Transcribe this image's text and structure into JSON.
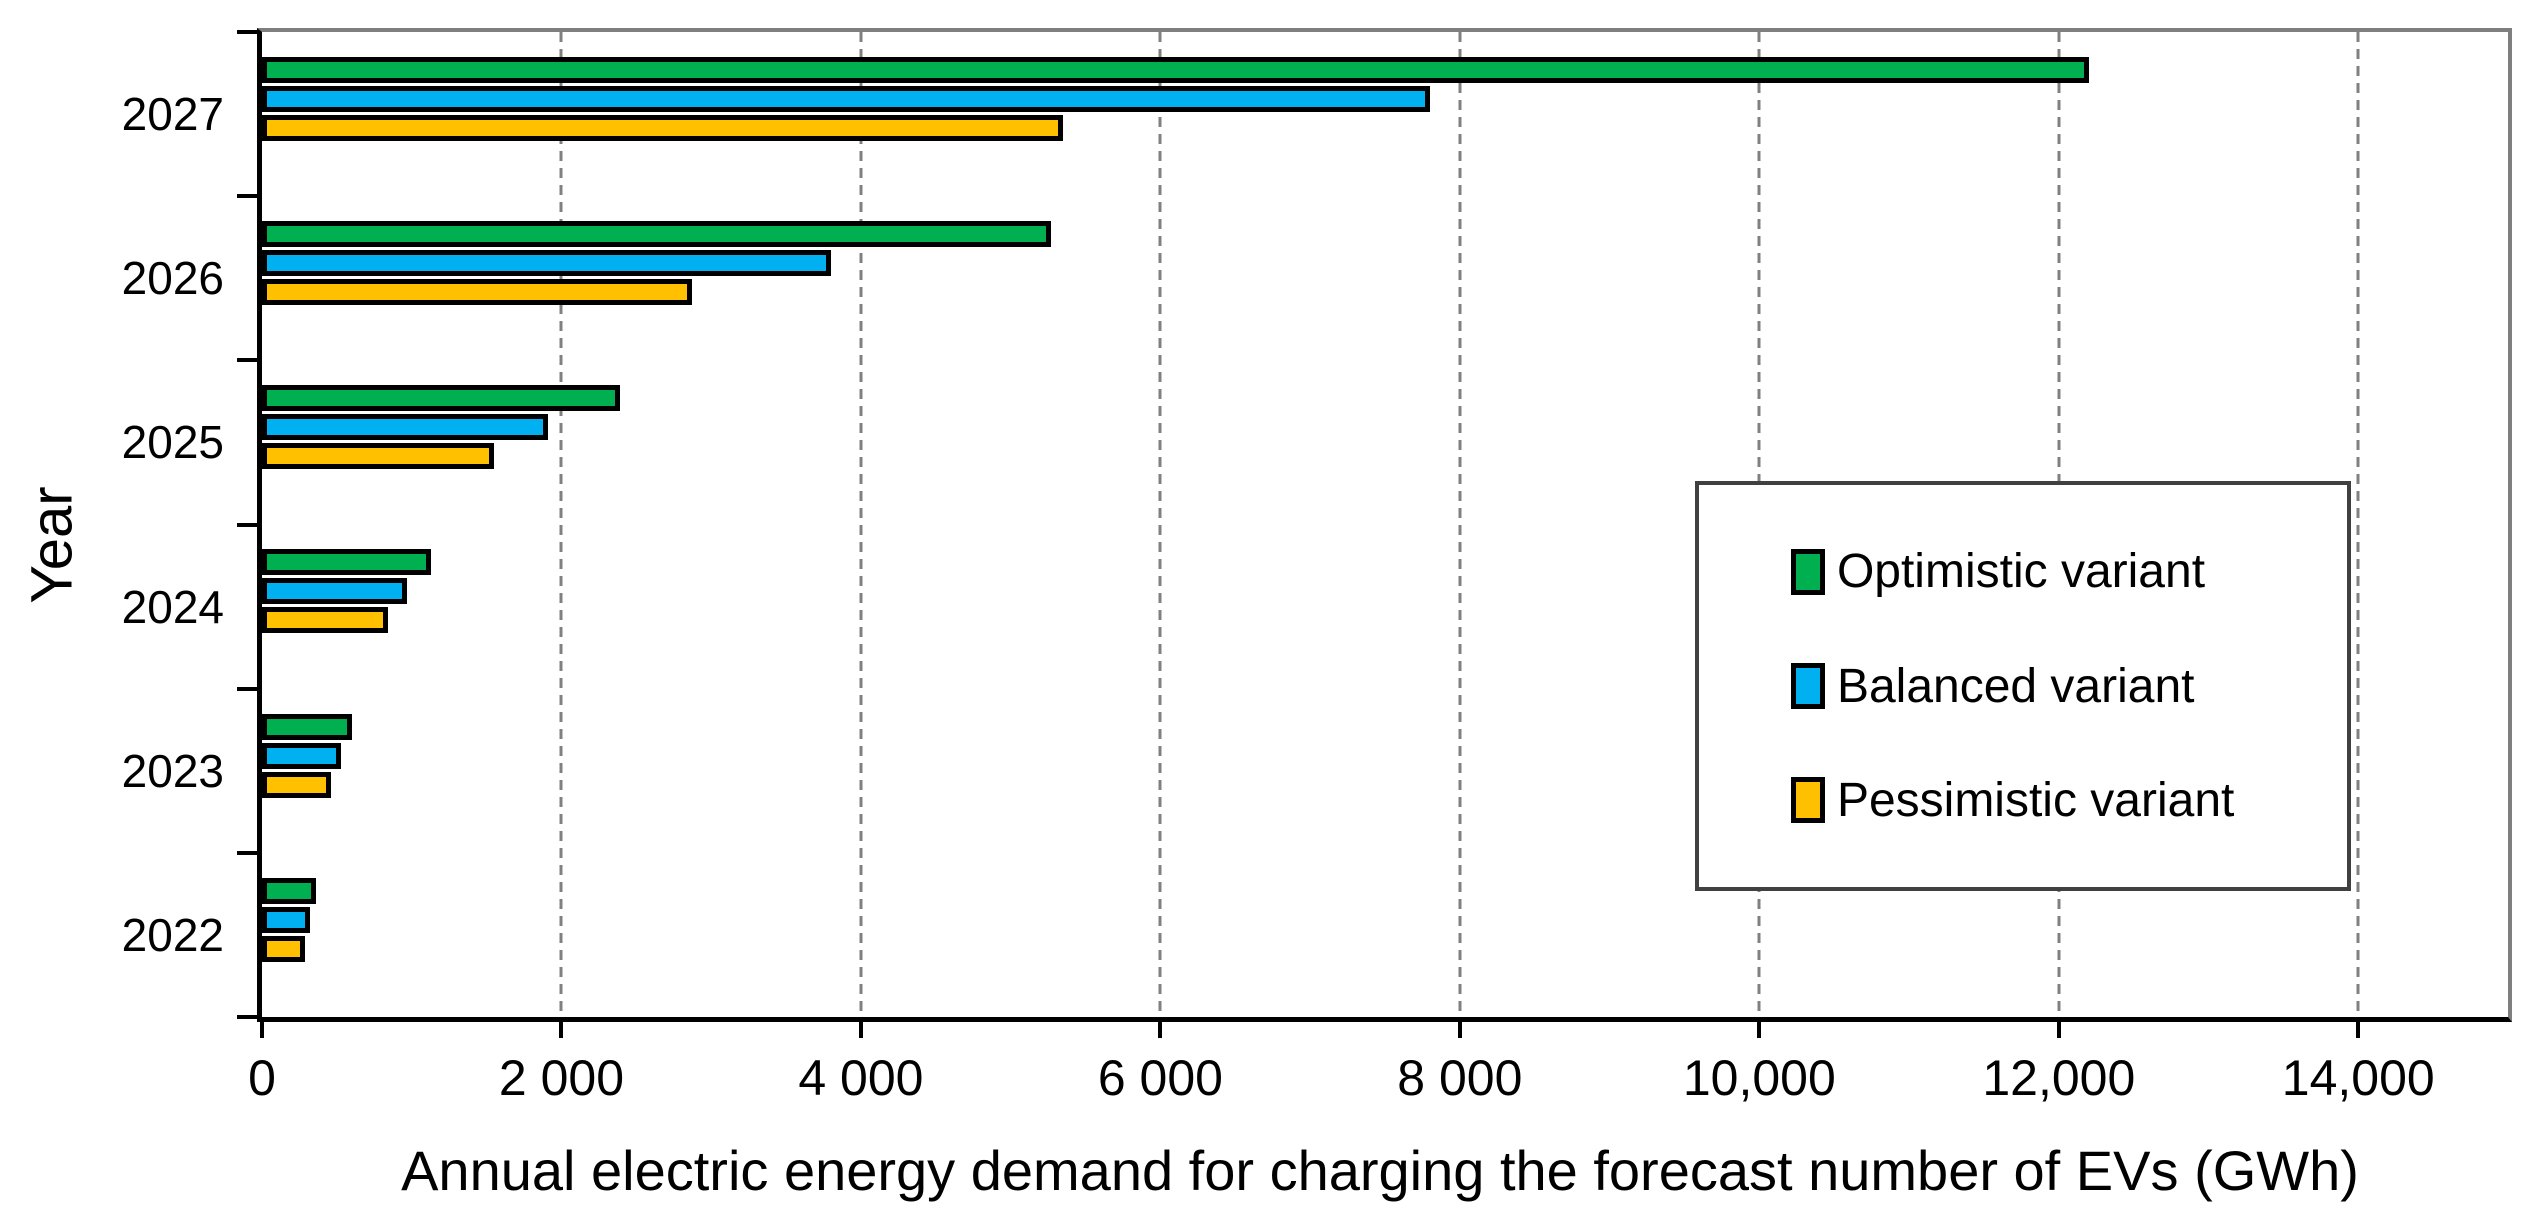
{
  "chart_data": {
    "type": "bar",
    "orientation": "horizontal",
    "xlabel": "Annual electric energy demand for charging the forecast number of EVs (GWh)",
    "ylabel": "Year",
    "categories": [
      "2027",
      "2026",
      "2025",
      "2024",
      "2023",
      "2022"
    ],
    "series": [
      {
        "name": "Optimistic variant",
        "color": "#00B050",
        "values": [
          12200,
          5270,
          2390,
          1130,
          600,
          360
        ]
      },
      {
        "name": "Balanced variant",
        "color": "#00B0F0",
        "values": [
          7800,
          3800,
          1910,
          970,
          530,
          320
        ]
      },
      {
        "name": "Pessimistic variant",
        "color": "#FFC000",
        "values": [
          5350,
          2870,
          1550,
          840,
          460,
          290
        ]
      }
    ],
    "xlim": [
      0,
      15000
    ],
    "x_ticks": [
      {
        "value": 0,
        "label": "0"
      },
      {
        "value": 2000,
        "label": "2 000"
      },
      {
        "value": 4000,
        "label": "4 000"
      },
      {
        "value": 6000,
        "label": "6 000"
      },
      {
        "value": 8000,
        "label": "8 000"
      },
      {
        "value": 10000,
        "label": "10,000"
      },
      {
        "value": 12000,
        "label": "12,000"
      },
      {
        "value": 14000,
        "label": "14,000"
      }
    ],
    "grid": "vertical-dashed-at-x-ticks",
    "legend_position": "inside-middle-right",
    "plot_frame_color": "#7F7F7F",
    "axis_color": "#000000",
    "gridline_color": "#808080",
    "bar_border_color": "#000000",
    "background_color": "#FFFFFF"
  }
}
